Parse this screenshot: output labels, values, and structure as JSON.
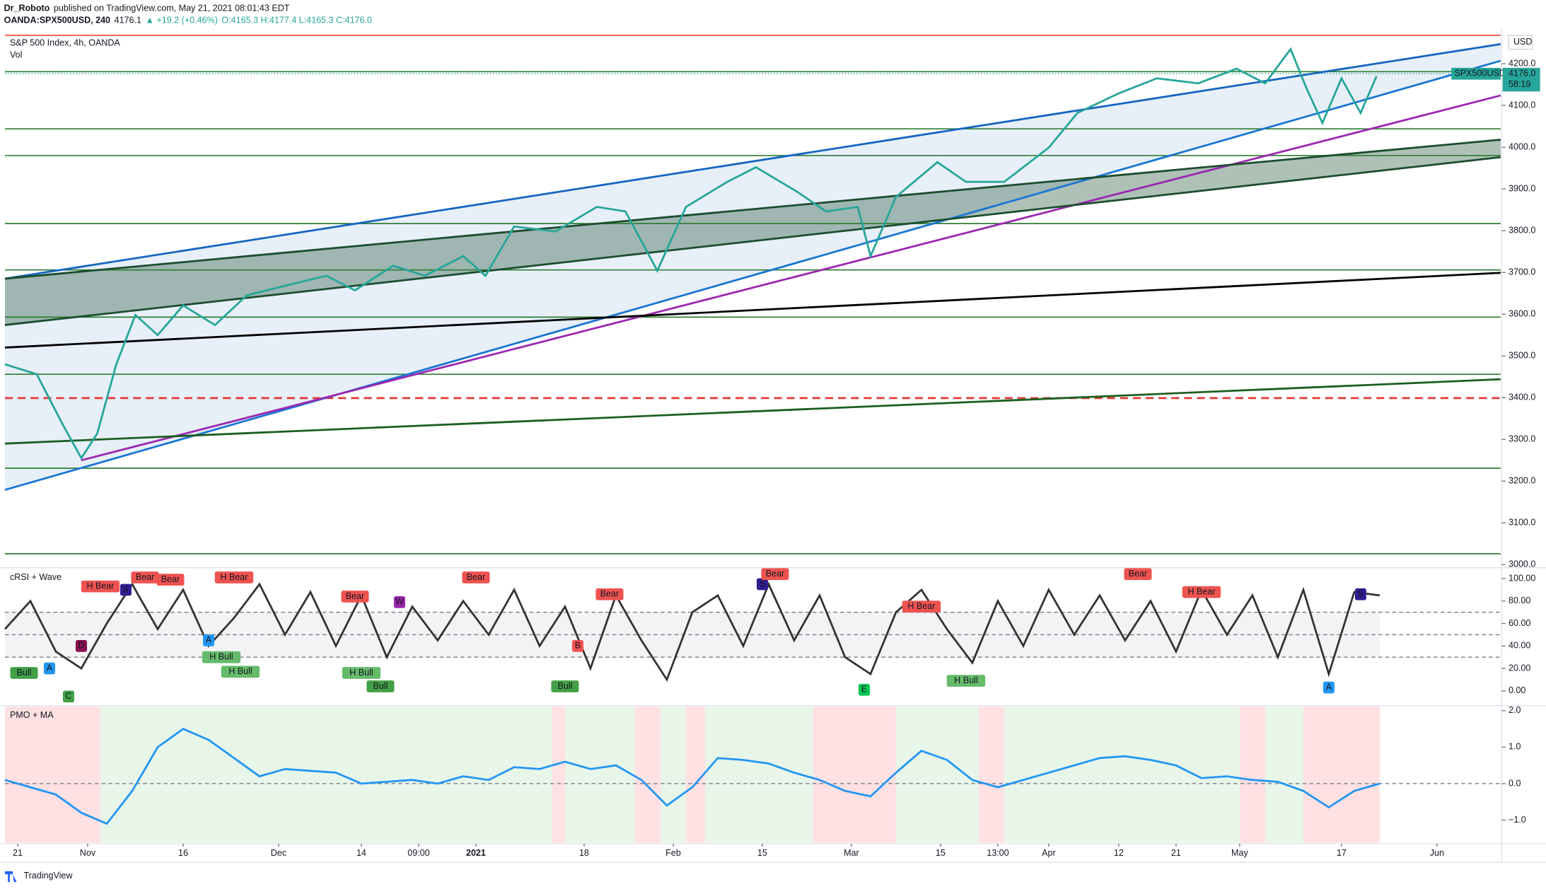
{
  "header": {
    "author": "Dr_Roboto",
    "published": "published on TradingView.com, May 21, 2021 08:01:43 EDT",
    "symbol": "OANDA:SPX500USD, 240",
    "last": "4176.1",
    "change": "▲ +19.2 (+0.46%)",
    "ohlc": "O:4165.3 H:4177.4 L:4165.3 C:4176.0"
  },
  "footer": "TradingView",
  "chart_data": [
    {
      "type": "line",
      "title": "S&P 500 Index, 4h, OANDA",
      "subtitle": "Vol",
      "currency": "USD",
      "symbol_tag": "SPX500USD",
      "last_price": {
        "value": 4176,
        "label": "4176.0"
      },
      "countdown": "58:19",
      "color": "#26a69a",
      "x": [
        18,
        23,
        27,
        30,
        32.5,
        35.5,
        38.5,
        42,
        46,
        51,
        56,
        62,
        68.5,
        73,
        79,
        84,
        90,
        93.5,
        98,
        104.5,
        111,
        115.5,
        120.5,
        125,
        131.5,
        136,
        142.5,
        147,
        152,
        154,
        158,
        164.5,
        169,
        175,
        182,
        186.5,
        193,
        199,
        205.5,
        211.5,
        216,
        220,
        222.5,
        225,
        228,
        231,
        233.5
      ],
      "values": [
        3480,
        3456,
        3338,
        3255,
        3314,
        3480,
        3598,
        3550,
        3621,
        3574,
        3645,
        3668,
        3692,
        3657,
        3716,
        3692,
        3739,
        3692,
        3810,
        3798,
        3857,
        3846,
        3704,
        3857,
        3917,
        3952,
        3893,
        3846,
        3857,
        3739,
        3881,
        3964,
        3917,
        3917,
        3999,
        4082,
        4129,
        4165,
        4153,
        4188,
        4153,
        4235,
        4141,
        4058,
        4165,
        4082,
        4170
      ],
      "xlim": [
        18,
        253
      ],
      "ylim": [
        2995,
        4270
      ],
      "yticks": [
        {
          "value": 3000,
          "label": "3000.0"
        },
        {
          "value": 3100,
          "label": "3100.0"
        },
        {
          "value": 3200,
          "label": "3200.0"
        },
        {
          "value": 3300,
          "label": "3300.0"
        },
        {
          "value": 3400,
          "label": "3400.0"
        },
        {
          "value": 3500,
          "label": "3500.0"
        },
        {
          "value": 3600,
          "label": "3600.0"
        },
        {
          "value": 3700,
          "label": "3700.0"
        },
        {
          "value": 3800,
          "label": "3800.0"
        },
        {
          "value": 3900,
          "label": "3900.0"
        },
        {
          "value": 4000,
          "label": "4000.0"
        },
        {
          "value": 4100,
          "label": "4100.0"
        },
        {
          "value": 4200,
          "label": "4200.0"
        }
      ],
      "hlines": [
        {
          "value": 4268,
          "color": "#f44336"
        },
        {
          "value": 4181,
          "color": "#2e7d32"
        },
        {
          "value": 4044,
          "color": "#2e7d32"
        },
        {
          "value": 3980,
          "color": "#2e7d32"
        },
        {
          "value": 3817,
          "color": "#2e7d32"
        },
        {
          "value": 3706,
          "color": "#2e7d32"
        },
        {
          "value": 3593,
          "color": "#2e7d32"
        },
        {
          "value": 3456,
          "color": "#2e7d32"
        },
        {
          "value": 3399,
          "color": "#e53935",
          "dashed": true
        },
        {
          "value": 3231,
          "color": "#2e7d32"
        },
        {
          "value": 3026,
          "color": "#2e7d32"
        }
      ],
      "lines": [
        {
          "x": [
            18,
            253
          ],
          "y": [
            3685,
            4247
          ],
          "color": "#1565c0"
        },
        {
          "x": [
            18,
            253
          ],
          "y": [
            3179,
            4207
          ],
          "color": "#1976d2"
        },
        {
          "x": [
            30,
            253
          ],
          "y": [
            3250,
            4124
          ],
          "color": "#9c27b0"
        },
        {
          "x": [
            18,
            253
          ],
          "y": [
            3685,
            4018
          ],
          "color": "#1b4d2e"
        },
        {
          "x": [
            18,
            253
          ],
          "y": [
            3574,
            3976
          ],
          "color": "#1b4d2e"
        },
        {
          "x": [
            18,
            253
          ],
          "y": [
            3520,
            3699
          ],
          "color": "#000000"
        },
        {
          "x": [
            18,
            253
          ],
          "y": [
            3290,
            3444
          ],
          "color": "#1b5e20"
        }
      ]
    },
    {
      "type": "line",
      "title": "cRSI + Wave",
      "color": "#333333",
      "xlim": [
        18,
        253
      ],
      "ylim": [
        -12.3,
        108.8
      ],
      "yticks": [
        {
          "value": 100,
          "label": "100.00"
        },
        {
          "value": 80,
          "label": "80.00"
        },
        {
          "value": 60,
          "label": "60.00"
        },
        {
          "value": 40,
          "label": "40.00"
        },
        {
          "value": 20,
          "label": "20.00"
        },
        {
          "value": 0,
          "label": "0.00"
        }
      ],
      "levels": [
        70,
        50,
        30
      ],
      "x": [
        18,
        22,
        26,
        30,
        34,
        38,
        42,
        46,
        50,
        54,
        58,
        62,
        66,
        70,
        74,
        78,
        82,
        86,
        90,
        94,
        98,
        102,
        106,
        110,
        114,
        118,
        122,
        126,
        130,
        134,
        138,
        142,
        146,
        150,
        154,
        158,
        162,
        166,
        170,
        174,
        178,
        182,
        186,
        190,
        194,
        198,
        202,
        206,
        210,
        214,
        218,
        222,
        226,
        230,
        234
      ],
      "values": [
        55,
        80,
        35,
        20,
        60,
        95,
        55,
        90,
        40,
        65,
        95,
        50,
        88,
        40,
        85,
        30,
        75,
        45,
        80,
        50,
        90,
        40,
        75,
        20,
        85,
        45,
        10,
        70,
        85,
        40,
        95,
        45,
        85,
        30,
        15,
        70,
        90,
        55,
        25,
        80,
        40,
        90,
        50,
        85,
        45,
        80,
        35,
        90,
        50,
        85,
        30,
        90,
        15,
        88,
        85
      ],
      "markers": [
        {
          "x": 21,
          "y": 16,
          "label": "Bull",
          "color": "#43a047"
        },
        {
          "x": 25,
          "y": 20,
          "label": "A",
          "color": "#2196f3"
        },
        {
          "x": 30,
          "y": 40,
          "label": "D",
          "color": "#880e4f"
        },
        {
          "x": 28,
          "y": -5,
          "label": "C",
          "color": "#43a047"
        },
        {
          "x": 33,
          "y": 93,
          "label": "H Bear",
          "color": "#ef5350"
        },
        {
          "x": 40,
          "y": 101,
          "label": "Bear",
          "color": "#ef5350"
        },
        {
          "x": 44,
          "y": 99,
          "label": "Bear",
          "color": "#ef5350"
        },
        {
          "x": 37,
          "y": 90,
          "label": "S",
          "color": "#311b92"
        },
        {
          "x": 54,
          "y": 101,
          "label": "H Bear",
          "color": "#ef5350"
        },
        {
          "x": 50,
          "y": 45,
          "label": "A",
          "color": "#2196f3"
        },
        {
          "x": 52,
          "y": 30,
          "label": "H Bull",
          "color": "#66bb6a"
        },
        {
          "x": 55,
          "y": 17,
          "label": "H Bull",
          "color": "#66bb6a"
        },
        {
          "x": 73,
          "y": 84,
          "label": "Bear",
          "color": "#ef5350"
        },
        {
          "x": 80,
          "y": 79,
          "label": "W",
          "color": "#9c27b0"
        },
        {
          "x": 74,
          "y": 16,
          "label": "H Bull",
          "color": "#66bb6a"
        },
        {
          "x": 77,
          "y": 4,
          "label": "Bull",
          "color": "#43a047"
        },
        {
          "x": 92,
          "y": 101,
          "label": "Bear",
          "color": "#ef5350"
        },
        {
          "x": 113,
          "y": 86,
          "label": "Bear",
          "color": "#ef5350"
        },
        {
          "x": 108,
          "y": 40,
          "label": "B",
          "color": "#ef5350"
        },
        {
          "x": 106,
          "y": 4,
          "label": "Bull",
          "color": "#43a047"
        },
        {
          "x": 137,
          "y": 95,
          "label": "S",
          "color": "#311b92"
        },
        {
          "x": 139,
          "y": 104,
          "label": "Bear",
          "color": "#ef5350"
        },
        {
          "x": 153,
          "y": 1,
          "label": "E",
          "color": "#00c853"
        },
        {
          "x": 162,
          "y": 75,
          "label": "H Bear",
          "color": "#ef5350"
        },
        {
          "x": 169,
          "y": 9,
          "label": "H Bull",
          "color": "#66bb6a"
        },
        {
          "x": 196,
          "y": 104,
          "label": "Bear",
          "color": "#ef5350"
        },
        {
          "x": 206,
          "y": 88,
          "label": "H Bear",
          "color": "#ef5350"
        },
        {
          "x": 226,
          "y": 3,
          "label": "A",
          "color": "#2196f3"
        },
        {
          "x": 231,
          "y": 86,
          "label": "S",
          "color": "#311b92"
        }
      ]
    },
    {
      "type": "line",
      "title": "PMO + MA",
      "color": "#2196f3",
      "xlim": [
        18,
        253
      ],
      "ylim": [
        -1.62,
        2.11
      ],
      "yticks": [
        {
          "value": 2,
          "label": "2.0"
        },
        {
          "value": 1,
          "label": "1.0"
        },
        {
          "value": 0,
          "label": "0.0"
        },
        {
          "value": -1,
          "label": "−1.0"
        }
      ],
      "levels": [
        0
      ],
      "red_zones": [
        [
          18,
          33
        ],
        [
          104,
          106
        ],
        [
          117,
          121
        ],
        [
          125,
          128
        ],
        [
          145,
          158
        ],
        [
          171,
          175
        ],
        [
          212,
          216
        ],
        [
          222,
          234
        ]
      ],
      "x": [
        18,
        22,
        26,
        30,
        34,
        38,
        42,
        46,
        50,
        54,
        58,
        62,
        66,
        70,
        74,
        78,
        82,
        86,
        90,
        94,
        98,
        102,
        106,
        110,
        114,
        118,
        122,
        126,
        130,
        134,
        138,
        142,
        146,
        150,
        154,
        158,
        162,
        166,
        170,
        174,
        178,
        182,
        186,
        190,
        194,
        198,
        202,
        206,
        210,
        214,
        218,
        222,
        226,
        230,
        234
      ],
      "values": [
        0.1,
        -0.1,
        -0.3,
        -0.8,
        -1.1,
        -0.2,
        1.0,
        1.5,
        1.2,
        0.7,
        0.2,
        0.4,
        0.35,
        0.3,
        0.0,
        0.05,
        0.1,
        0.0,
        0.2,
        0.1,
        0.45,
        0.4,
        0.6,
        0.4,
        0.5,
        0.1,
        -0.6,
        -0.1,
        0.7,
        0.65,
        0.55,
        0.3,
        0.1,
        -0.2,
        -0.35,
        0.3,
        0.9,
        0.65,
        0.1,
        -0.1,
        0.1,
        0.3,
        0.5,
        0.7,
        0.75,
        0.65,
        0.5,
        0.15,
        0.2,
        0.1,
        0.05,
        -0.2,
        -0.65,
        -0.2,
        0.0
      ],
      "xticks": [
        {
          "value": 20,
          "label": "21"
        },
        {
          "value": 31,
          "label": "Nov"
        },
        {
          "value": 46,
          "label": "16"
        },
        {
          "value": 61,
          "label": "Dec"
        },
        {
          "value": 74,
          "label": "14"
        },
        {
          "value": 83,
          "label": "09:00"
        },
        {
          "value": 92,
          "label": "2021"
        },
        {
          "value": 109,
          "label": "18"
        },
        {
          "value": 123,
          "label": "Feb"
        },
        {
          "value": 137,
          "label": "15"
        },
        {
          "value": 151,
          "label": "Mar"
        },
        {
          "value": 165,
          "label": "15"
        },
        {
          "value": 174,
          "label": "13:00"
        },
        {
          "value": 182,
          "label": "Apr"
        },
        {
          "value": 193,
          "label": "12"
        },
        {
          "value": 202,
          "label": "21"
        },
        {
          "value": 212,
          "label": "May"
        },
        {
          "value": 228,
          "label": "17"
        },
        {
          "value": 243,
          "label": "Jun"
        }
      ]
    }
  ]
}
